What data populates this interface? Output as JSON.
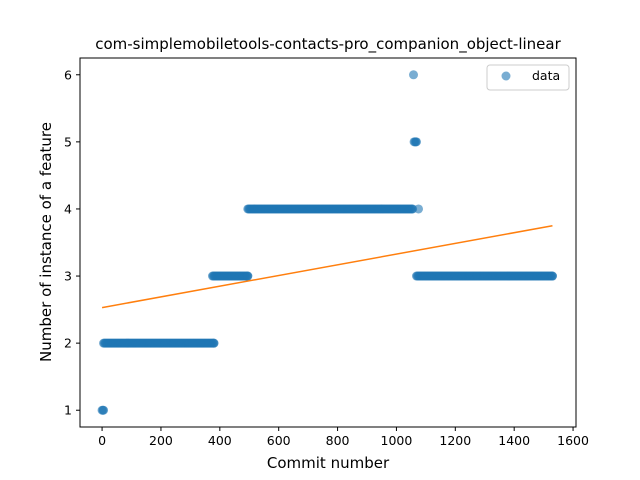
{
  "chart_data": {
    "type": "scatter",
    "title": "com-simplemobiletools-contacts-pro_companion_object-linear",
    "xlabel": "Commit number",
    "ylabel": "Number of instance of a feature",
    "xlim": [
      -75,
      1610
    ],
    "ylim": [
      0.75,
      6.25
    ],
    "xticks": [
      0,
      200,
      400,
      600,
      800,
      1000,
      1200,
      1400,
      1600
    ],
    "yticks": [
      1,
      2,
      3,
      4,
      5,
      6
    ],
    "grid": false,
    "legend": {
      "placement": "top-right",
      "entries": [
        "data"
      ]
    },
    "colors": {
      "data": "#1f77b4",
      "fit": "#ff7f0e"
    },
    "series": [
      {
        "name": "data",
        "kind": "scatter",
        "segments": [
          {
            "x_start": 0,
            "x_end": 5,
            "y": 1
          },
          {
            "x_start": 5,
            "x_end": 380,
            "y": 2
          },
          {
            "x_start": 375,
            "x_end": 495,
            "y": 3
          },
          {
            "x_start": 495,
            "x_end": 1055,
            "y": 4
          },
          {
            "x_start": 1075,
            "x_end": 1075,
            "y": 4
          },
          {
            "x_start": 1058,
            "x_end": 1058,
            "y": 6
          },
          {
            "x_start": 1060,
            "x_end": 1068,
            "y": 5
          },
          {
            "x_start": 1068,
            "x_end": 1530,
            "y": 3
          }
        ]
      },
      {
        "kind": "line",
        "x": [
          0,
          1530
        ],
        "y": [
          2.53,
          3.75
        ]
      }
    ]
  }
}
